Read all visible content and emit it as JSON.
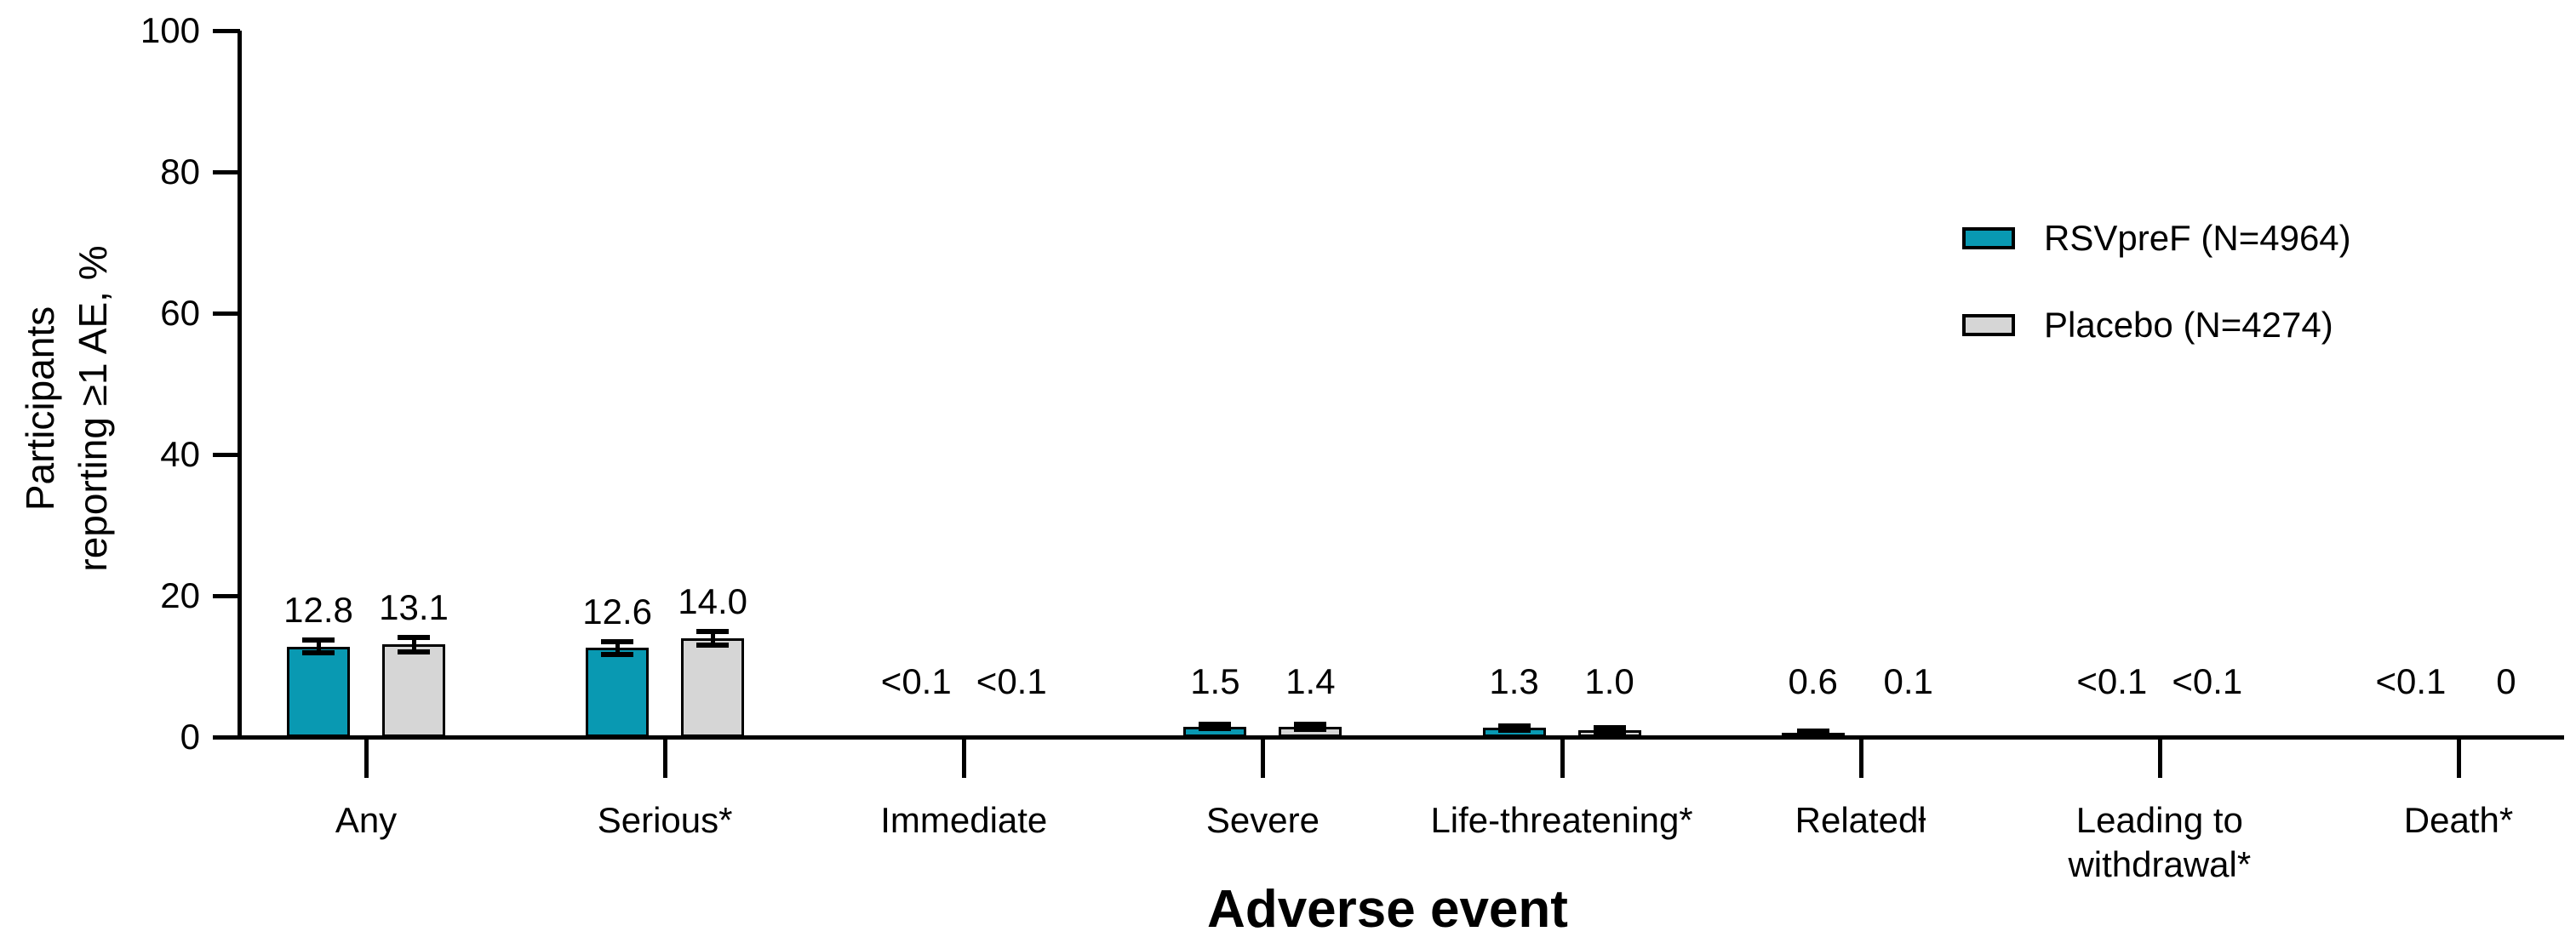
{
  "chart_data": {
    "type": "bar",
    "title": "",
    "xlabel": "Adverse event",
    "ylabel_lines": [
      "Participants",
      "reporting ≥1 AE, %"
    ],
    "ylim": [
      0,
      100
    ],
    "y_ticks": [
      0,
      20,
      40,
      60,
      80,
      100
    ],
    "grid": false,
    "legend_position": "upper-right",
    "categories": [
      "Any",
      "Serious*",
      "Immediate",
      "Severe",
      "Life-threatening*",
      "Relatedƚ",
      "Leading to\nwithdrawal*",
      "Death*"
    ],
    "series": [
      {
        "name": "RSVpreF (N=4964)",
        "color": "#0999B2",
        "values": [
          12.8,
          12.6,
          0.05,
          1.5,
          1.3,
          0.6,
          0.05,
          0.05
        ],
        "value_labels": [
          "12.8",
          "12.6",
          "<0.1",
          "1.5",
          "1.3",
          "0.6",
          "<0.1",
          "<0.1"
        ],
        "errors": [
          0.9,
          0.9,
          0,
          0.35,
          0.3,
          0.2,
          0,
          0
        ]
      },
      {
        "name": "Placebo (N=4274)",
        "color": "#D6D6D6",
        "values": [
          13.1,
          14.0,
          0.05,
          1.4,
          1.0,
          0.1,
          0.05,
          0
        ],
        "value_labels": [
          "13.1",
          "14.0",
          "<0.1",
          "1.4",
          "1.0",
          "0.1",
          "<0.1",
          "0"
        ],
        "errors": [
          1.0,
          1.0,
          0,
          0.35,
          0.3,
          0,
          0,
          0
        ]
      }
    ]
  }
}
